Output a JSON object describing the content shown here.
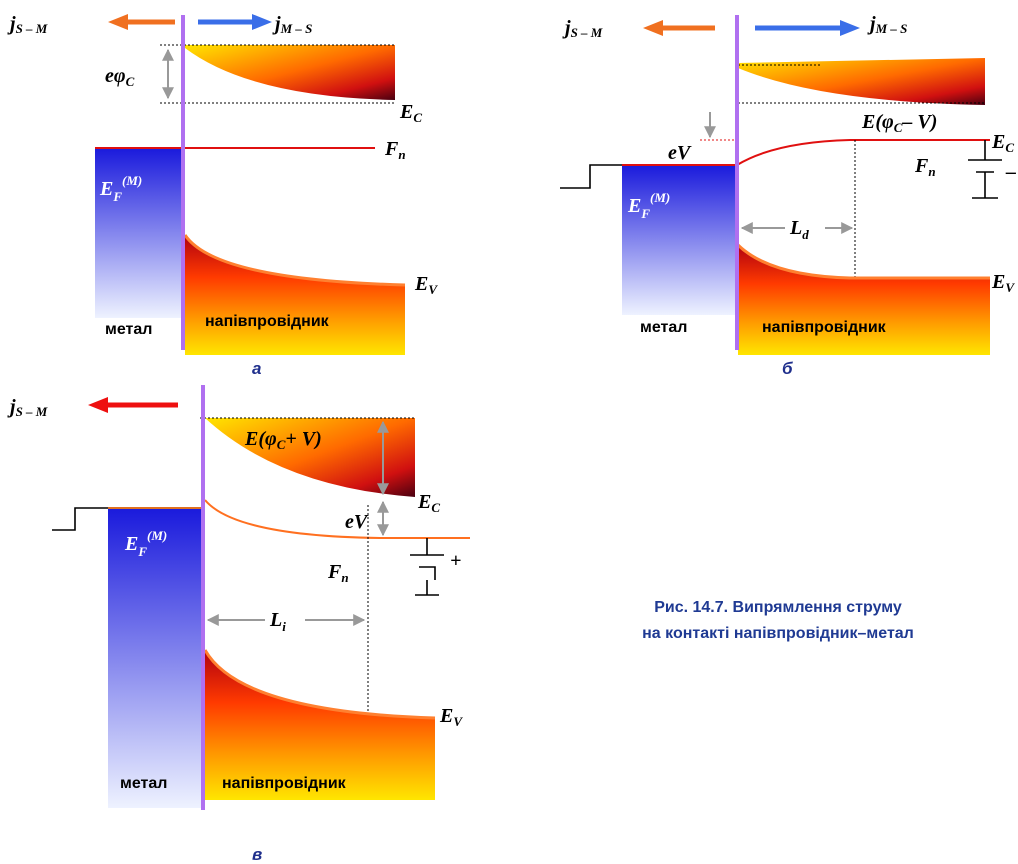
{
  "panel_a": {
    "j_left": "j",
    "j_left_sub": "S – M",
    "j_right": "j",
    "j_right_sub": "M – S",
    "ephi": "eφ",
    "ephi_sub": "C",
    "ec": "E",
    "ec_sub": "C",
    "fn": "F",
    "fn_sub": "n",
    "ef": "E",
    "ef_sub": "F",
    "ef_sup": "(M)",
    "ev": "E",
    "ev_sub": "V",
    "metal": "метал",
    "semi": "напівпровідник",
    "caption": "а"
  },
  "panel_b": {
    "j_left": "j",
    "j_left_sub": "S – M",
    "j_right": "j",
    "j_right_sub": "M – S",
    "barrier": "E(φ",
    "barrier_sub": "C",
    "barrier_end": "– V)",
    "ec": "E",
    "ec_sub": "C",
    "fn": "F",
    "fn_sub": "n",
    "ev_label": "eV",
    "battery_sign": "–",
    "ef": "E",
    "ef_sub": "F",
    "ef_sup": "(M)",
    "ld": "L",
    "ld_sub": "d",
    "ev": "E",
    "ev_sub": "V",
    "metal": "метал",
    "semi": "напівпровідник",
    "caption": "б"
  },
  "panel_c": {
    "j_left": "j",
    "j_left_sub": "S – M",
    "barrier": "E(φ",
    "barrier_sub": "C",
    "barrier_end": "+ V)",
    "ec": "E",
    "ec_sub": "C",
    "ev_label": "eV",
    "fn": "F",
    "fn_sub": "n",
    "battery_sign": "+",
    "ef": "E",
    "ef_sub": "F",
    "ef_sup": "(M)",
    "li": "L",
    "li_sub": "i",
    "ev": "E",
    "ev_sub": "V",
    "metal": "метал",
    "semi": "напівпровідник",
    "caption": "в"
  },
  "figure_caption": {
    "line1": "Рис. 14.7. Випрямлення струму",
    "line2": "на контакті напівпровідник–метал"
  }
}
